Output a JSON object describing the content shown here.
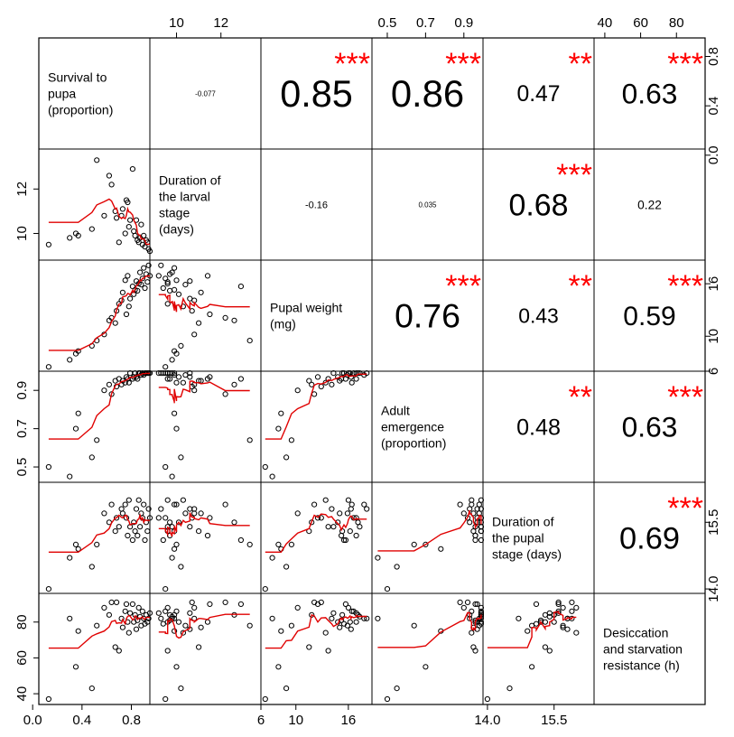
{
  "chart_data": {
    "type": "scatter-matrix",
    "variables": [
      {
        "id": "survival",
        "label_lines": [
          "Survival to",
          "pupa",
          "(proportion)"
        ],
        "range": [
          0.05,
          0.95
        ],
        "ticks": [
          0.0,
          0.4,
          0.8
        ],
        "tick_labels": [
          "0.0",
          "0.4",
          "0.8"
        ]
      },
      {
        "id": "duration_larval",
        "label_lines": [
          "Duration of",
          "the larval",
          "stage",
          "(days)"
        ],
        "range": [
          8.8,
          13.8
        ],
        "ticks": [
          10,
          12
        ],
        "tick_labels": [
          "10",
          "12"
        ]
      },
      {
        "id": "pupal_weight",
        "label_lines": [
          "Pupal weight",
          "(mg)"
        ],
        "range": [
          6,
          18.7
        ],
        "ticks": [
          6,
          10,
          16
        ],
        "tick_labels": [
          "6",
          "10",
          "16"
        ]
      },
      {
        "id": "adult_emergence",
        "label_lines": [
          "Adult",
          "emergence",
          "(proportion)"
        ],
        "range": [
          0.42,
          1.0
        ],
        "ticks": [
          0.5,
          0.7,
          0.9
        ],
        "tick_labels": [
          "0.5",
          "0.7",
          "0.9"
        ]
      },
      {
        "id": "duration_pupal",
        "label_lines": [
          "Duration of",
          "the pupal",
          "stage (days)"
        ],
        "range": [
          13.9,
          16.4
        ],
        "ticks": [
          14.0,
          15.5
        ],
        "tick_labels": [
          "14.0",
          "15.5"
        ]
      },
      {
        "id": "desiccation",
        "label_lines": [
          "Desiccation",
          "and starvation",
          "resistance (h)"
        ],
        "range": [
          34,
          96
        ],
        "ticks": [
          40,
          60,
          80
        ],
        "tick_labels": [
          "40",
          "60",
          "80"
        ]
      }
    ],
    "top_axes": {
      "duration_larval": [
        "10",
        "12"
      ],
      "adult_emergence": [
        "0.5",
        "0.7",
        "0.9"
      ],
      "desiccation": [
        "40",
        "60",
        "80"
      ]
    },
    "right_axes": {
      "survival": [
        "0.0",
        "0.4",
        "0.8"
      ],
      "pupal_weight": [
        "6",
        "10",
        "16"
      ],
      "duration_pupal": [
        "14.0",
        "15.5"
      ]
    },
    "left_axes": {
      "duration_larval": [
        "10",
        "12"
      ],
      "adult_emergence": [
        "0.5",
        "0.7",
        "0.9"
      ],
      "desiccation": [
        "40",
        "60",
        "80"
      ]
    },
    "bottom_axes": {
      "survival": [
        "0.0",
        "0.4",
        "0.8"
      ],
      "pupal_weight": [
        "6",
        "10",
        "16"
      ],
      "duration_pupal": [
        "14.0",
        "15.5"
      ]
    },
    "correlations": [
      {
        "row": 0,
        "col": 1,
        "text": "-0.077",
        "stars": ""
      },
      {
        "row": 0,
        "col": 2,
        "text": "0.85",
        "stars": "***"
      },
      {
        "row": 0,
        "col": 3,
        "text": "0.86",
        "stars": "***"
      },
      {
        "row": 0,
        "col": 4,
        "text": "0.47",
        "stars": "**"
      },
      {
        "row": 0,
        "col": 5,
        "text": "0.63",
        "stars": "***"
      },
      {
        "row": 1,
        "col": 2,
        "text": "-0.16",
        "stars": ""
      },
      {
        "row": 1,
        "col": 3,
        "text": "0.035",
        "stars": ""
      },
      {
        "row": 1,
        "col": 4,
        "text": "0.68",
        "stars": "***"
      },
      {
        "row": 1,
        "col": 5,
        "text": "0.22",
        "stars": ""
      },
      {
        "row": 2,
        "col": 3,
        "text": "0.76",
        "stars": "***"
      },
      {
        "row": 2,
        "col": 4,
        "text": "0.43",
        "stars": "**"
      },
      {
        "row": 2,
        "col": 5,
        "text": "0.59",
        "stars": "***"
      },
      {
        "row": 3,
        "col": 4,
        "text": "0.48",
        "stars": "**"
      },
      {
        "row": 3,
        "col": 5,
        "text": "0.63",
        "stars": "***"
      },
      {
        "row": 4,
        "col": 5,
        "text": "0.69",
        "stars": "***"
      }
    ],
    "observations": [
      {
        "survival": 0.13,
        "duration_larval": 9.5,
        "pupal_weight": 6.5,
        "adult_emergence": 0.5,
        "duration_pupal": 14.0,
        "desiccation": 37
      },
      {
        "survival": 0.3,
        "duration_larval": 9.8,
        "pupal_weight": 7.3,
        "adult_emergence": 0.45,
        "duration_pupal": 14.7,
        "desiccation": 82
      },
      {
        "survival": 0.35,
        "duration_larval": 10.0,
        "pupal_weight": 8.0,
        "adult_emergence": 0.7,
        "duration_pupal": 15.0,
        "desiccation": 55
      },
      {
        "survival": 0.37,
        "duration_larval": 9.9,
        "pupal_weight": 8.3,
        "adult_emergence": 0.78,
        "duration_pupal": 14.9,
        "desiccation": 75
      },
      {
        "survival": 0.48,
        "duration_larval": 10.2,
        "pupal_weight": 8.9,
        "adult_emergence": 0.55,
        "duration_pupal": 14.5,
        "desiccation": 43
      },
      {
        "survival": 0.52,
        "duration_larval": 13.3,
        "pupal_weight": 9.5,
        "adult_emergence": 0.64,
        "duration_pupal": 15.0,
        "desiccation": 78
      },
      {
        "survival": 0.58,
        "duration_larval": 10.8,
        "pupal_weight": 10.2,
        "adult_emergence": 0.9,
        "duration_pupal": 15.7,
        "desiccation": 88
      },
      {
        "survival": 0.62,
        "duration_larval": 12.6,
        "pupal_weight": 11.8,
        "adult_emergence": 0.93,
        "duration_pupal": 15.5,
        "desiccation": 84
      },
      {
        "survival": 0.64,
        "duration_larval": 12.2,
        "pupal_weight": 12.1,
        "adult_emergence": 0.88,
        "duration_pupal": 15.9,
        "desiccation": 91
      },
      {
        "survival": 0.67,
        "duration_larval": 11.0,
        "pupal_weight": 11.5,
        "adult_emergence": 0.95,
        "duration_pupal": 15.3,
        "desiccation": 66
      },
      {
        "survival": 0.68,
        "duration_larval": 10.7,
        "pupal_weight": 12.9,
        "adult_emergence": 0.92,
        "duration_pupal": 15.6,
        "desiccation": 91
      },
      {
        "survival": 0.7,
        "duration_larval": 9.6,
        "pupal_weight": 13.7,
        "adult_emergence": 0.96,
        "duration_pupal": 15.4,
        "desiccation": 64
      },
      {
        "survival": 0.72,
        "duration_larval": 10.8,
        "pupal_weight": 14.1,
        "adult_emergence": 0.93,
        "duration_pupal": 15.8,
        "desiccation": 82
      },
      {
        "survival": 0.73,
        "duration_larval": 11.1,
        "pupal_weight": 15.0,
        "adult_emergence": 0.95,
        "duration_pupal": 15.7,
        "desiccation": 77
      },
      {
        "survival": 0.75,
        "duration_larval": 10.0,
        "pupal_weight": 16.4,
        "adult_emergence": 0.94,
        "duration_pupal": 15.9,
        "desiccation": 86
      },
      {
        "survival": 0.76,
        "duration_larval": 11.5,
        "pupal_weight": 12.5,
        "adult_emergence": 0.97,
        "duration_pupal": 15.6,
        "desiccation": 90
      },
      {
        "survival": 0.77,
        "duration_larval": 11.4,
        "pupal_weight": 16.9,
        "adult_emergence": 0.96,
        "duration_pupal": 15.2,
        "desiccation": 80
      },
      {
        "survival": 0.78,
        "duration_larval": 10.3,
        "pupal_weight": 13.4,
        "adult_emergence": 0.94,
        "duration_pupal": 16.0,
        "desiccation": 74
      },
      {
        "survival": 0.79,
        "duration_larval": 10.6,
        "pupal_weight": 14.3,
        "adult_emergence": 0.99,
        "duration_pupal": 15.4,
        "desiccation": 85
      },
      {
        "survival": 0.81,
        "duration_larval": 12.9,
        "pupal_weight": 15.7,
        "adult_emergence": 0.96,
        "duration_pupal": 15.1,
        "desiccation": 90
      },
      {
        "survival": 0.82,
        "duration_larval": 10.1,
        "pupal_weight": 14.8,
        "adult_emergence": 0.97,
        "duration_pupal": 15.5,
        "desiccation": 80
      },
      {
        "survival": 0.83,
        "duration_larval": 9.9,
        "pupal_weight": 15.3,
        "adult_emergence": 0.99,
        "duration_pupal": 15.3,
        "desiccation": 84
      },
      {
        "survival": 0.84,
        "duration_larval": 10.6,
        "pupal_weight": 16.3,
        "adult_emergence": 0.97,
        "duration_pupal": 15.8,
        "desiccation": 76
      },
      {
        "survival": 0.85,
        "duration_larval": 9.7,
        "pupal_weight": 15.2,
        "adult_emergence": 0.96,
        "duration_pupal": 15.2,
        "desiccation": 81
      },
      {
        "survival": 0.86,
        "duration_larval": 9.6,
        "pupal_weight": 16.0,
        "adult_emergence": 0.99,
        "duration_pupal": 16.0,
        "desiccation": 88
      },
      {
        "survival": 0.87,
        "duration_larval": 9.8,
        "pupal_weight": 17.3,
        "adult_emergence": 0.99,
        "duration_pupal": 15.4,
        "desiccation": 83
      },
      {
        "survival": 0.88,
        "duration_larval": 10.4,
        "pupal_weight": 15.9,
        "adult_emergence": 0.98,
        "duration_pupal": 15.7,
        "desiccation": 78
      },
      {
        "survival": 0.89,
        "duration_larval": 9.5,
        "pupal_weight": 16.6,
        "adult_emergence": 0.99,
        "duration_pupal": 15.6,
        "desiccation": 86
      },
      {
        "survival": 0.9,
        "duration_larval": 9.9,
        "pupal_weight": 17.8,
        "adult_emergence": 0.98,
        "duration_pupal": 15.9,
        "desiccation": 82
      },
      {
        "survival": 0.91,
        "duration_larval": 9.4,
        "pupal_weight": 15.5,
        "adult_emergence": 0.99,
        "duration_pupal": 15.1,
        "desiccation": 79
      },
      {
        "survival": 0.92,
        "duration_larval": 9.7,
        "pupal_weight": 17.1,
        "adult_emergence": 0.99,
        "duration_pupal": 15.5,
        "desiccation": 84
      },
      {
        "survival": 0.93,
        "duration_larval": 9.6,
        "pupal_weight": 16.2,
        "adult_emergence": 0.99,
        "duration_pupal": 15.3,
        "desiccation": 80
      },
      {
        "survival": 0.94,
        "duration_larval": 9.3,
        "pupal_weight": 18.1,
        "adult_emergence": 0.99,
        "duration_pupal": 15.8,
        "desiccation": 82
      },
      {
        "survival": 0.95,
        "duration_larval": 9.2,
        "pupal_weight": 16.9,
        "adult_emergence": 0.99,
        "duration_pupal": 15.6,
        "desiccation": 85
      }
    ],
    "smooth_color": "#e00000",
    "star_color": "#ff0000"
  }
}
